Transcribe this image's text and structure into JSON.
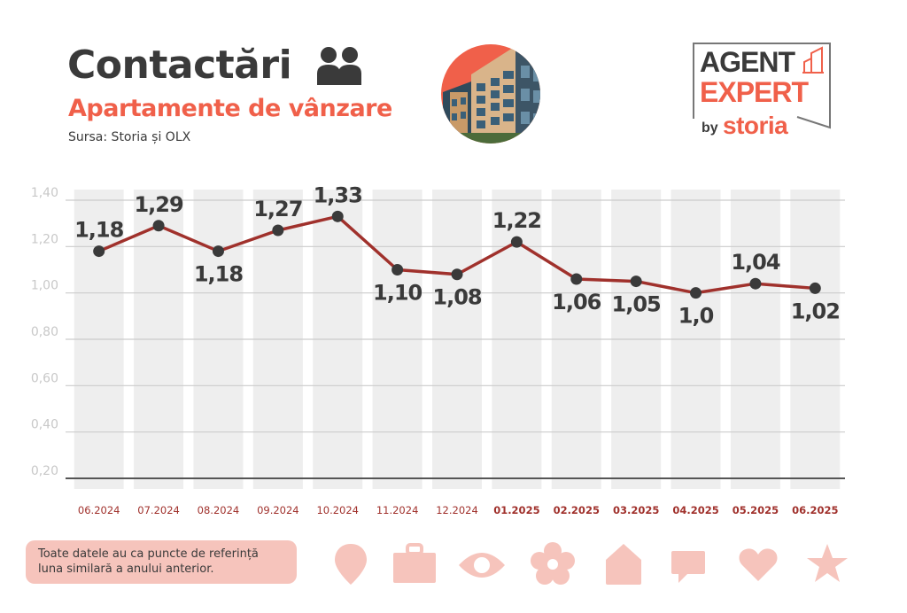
{
  "header": {
    "title": "Contactări",
    "subtitle": "Apartamente de vânzare",
    "source": "Sursa: Storia și OLX",
    "title_icon": "people-icon",
    "photo": "apartment-building-photo"
  },
  "logo": {
    "line1": "AGENT",
    "line2": "EXPERT",
    "by": "by",
    "brand": "storia"
  },
  "note": {
    "line1": "Toate datele au ca puncte de referință",
    "line2": "luna similară a anului anterior."
  },
  "footer_icons": [
    "location-pin-icon",
    "briefcase-icon",
    "eye-icon",
    "flower-icon",
    "house-icon",
    "chat-bubble-icon",
    "heart-icon",
    "star-icon"
  ],
  "colors": {
    "accent": "#f0604a",
    "line": "#a0312c",
    "point": "#3a3a3a",
    "column_band": "#eeeeee",
    "grid": "#cccccc",
    "axis_label": "#c8c8c8",
    "xlabel_2024": "#a0312c",
    "xlabel_2025": "#a0312c",
    "icon_pink": "#f6c4bc"
  },
  "chart_data": {
    "type": "line",
    "title": "Contactări",
    "subtitle": "Apartamente de vânzare",
    "xlabel": "",
    "ylabel": "",
    "ylim": [
      0.2,
      1.4
    ],
    "yticks": [
      "1,40",
      "1,20",
      "1,00",
      "0,80",
      "0,60",
      "0,40",
      "0,20"
    ],
    "ytick_values": [
      1.4,
      1.2,
      1.0,
      0.8,
      0.6,
      0.4,
      0.2
    ],
    "grid": true,
    "categories": [
      "06.2024",
      "07.2024",
      "08.2024",
      "09.2024",
      "10.2024",
      "11.2024",
      "12.2024",
      "01.2025",
      "02.2025",
      "03.2025",
      "04.2025",
      "05.2025",
      "06.2025"
    ],
    "bold_categories": [
      false,
      false,
      false,
      false,
      false,
      false,
      false,
      true,
      true,
      true,
      true,
      true,
      true
    ],
    "series": [
      {
        "name": "Contactări",
        "values": [
          1.18,
          1.29,
          1.18,
          1.27,
          1.33,
          1.1,
          1.08,
          1.22,
          1.06,
          1.05,
          1.0,
          1.04,
          1.02
        ],
        "labels": [
          "1,18",
          "1,29",
          "1,18",
          "1,27",
          "1,33",
          "1,10",
          "1,08",
          "1,22",
          "1,06",
          "1,05",
          "1,0",
          "1,04",
          "1,02"
        ],
        "label_position": [
          "above",
          "above",
          "below",
          "above",
          "above",
          "below",
          "below",
          "above",
          "below",
          "below",
          "below",
          "above",
          "below"
        ]
      }
    ]
  }
}
